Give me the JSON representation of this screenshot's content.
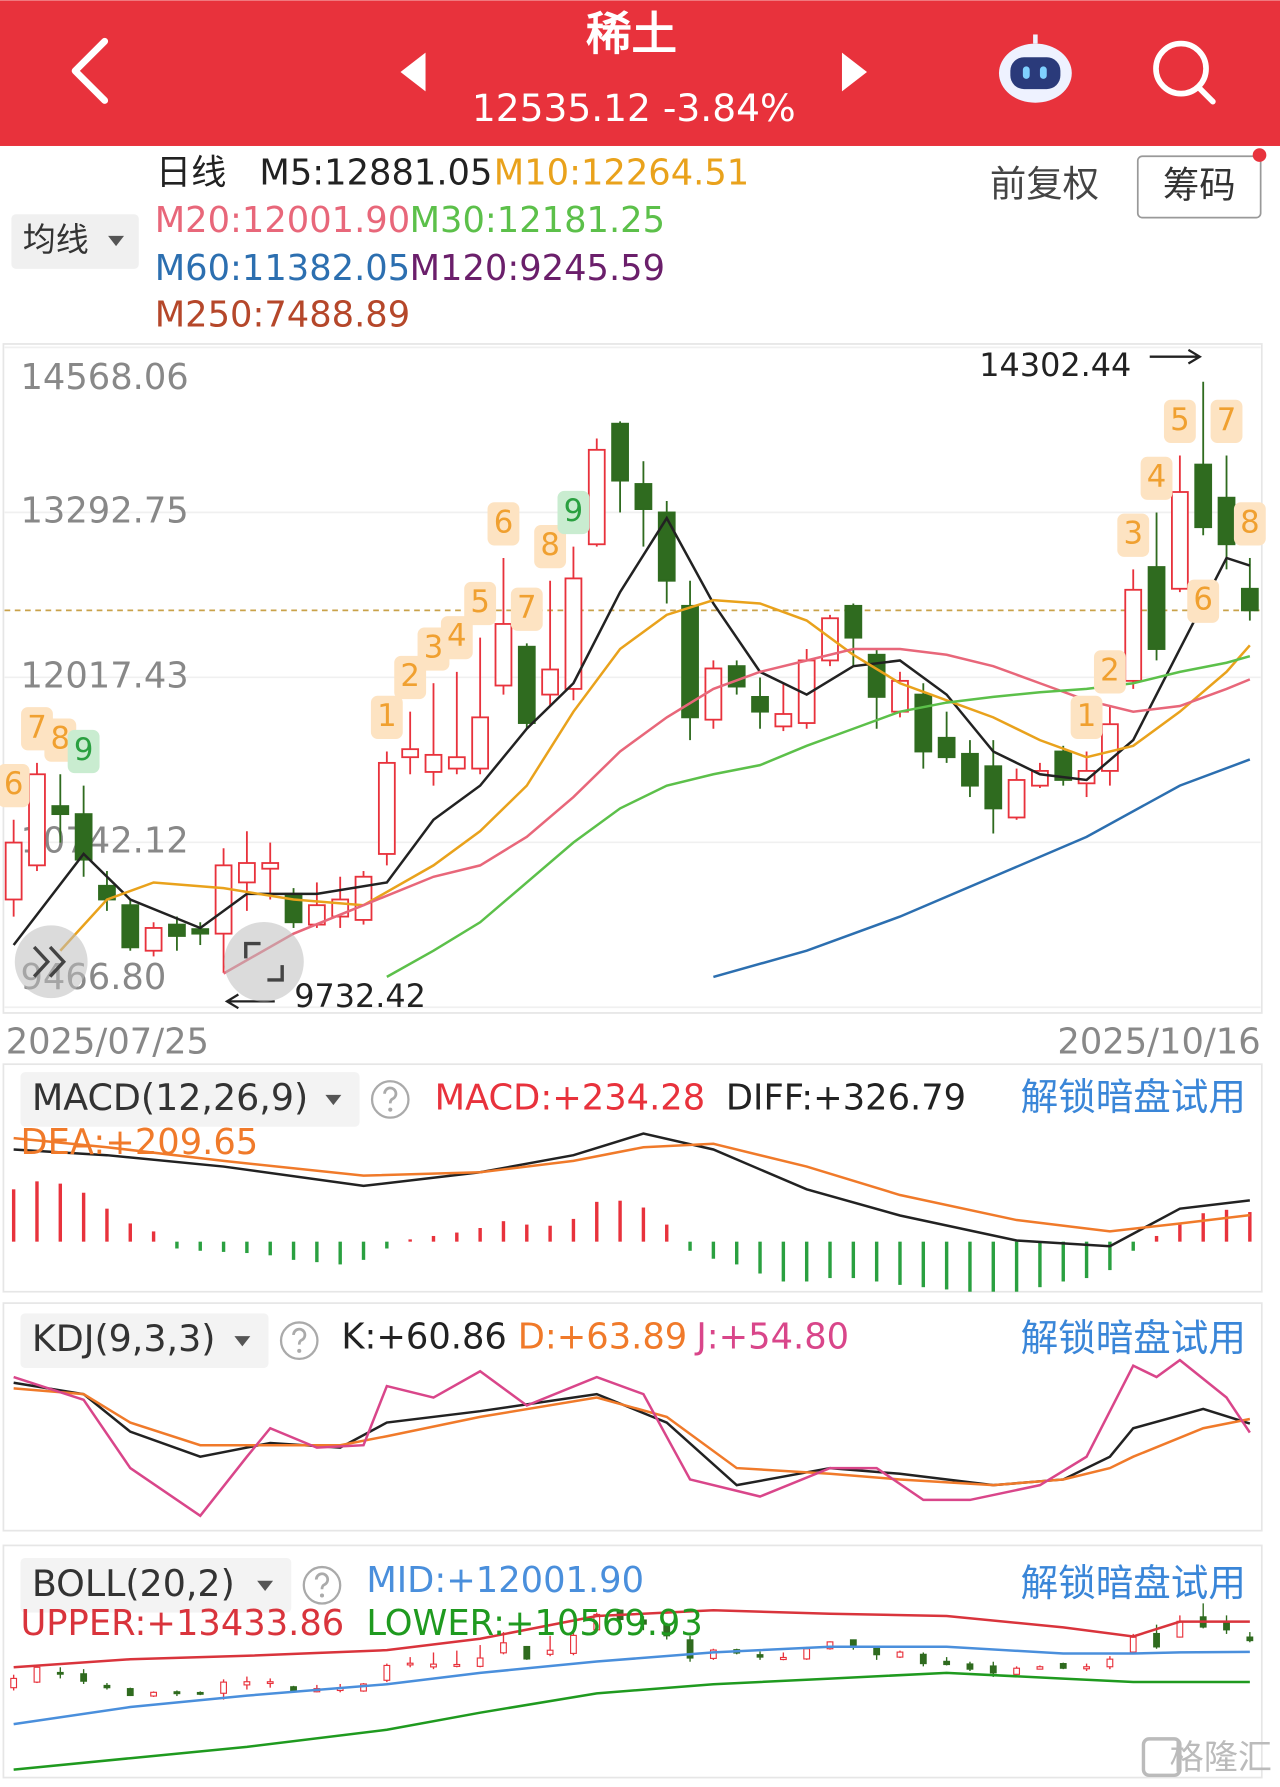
{
  "header": {
    "title": "稀土",
    "quote": "12535.12 -3.84%"
  },
  "toolbar": {
    "ma_button": "均线",
    "adjust": "前复权",
    "chips": "筹码"
  },
  "watermark": "格隆汇",
  "chart_data": [
    {
      "type": "candlestick",
      "period": "日线",
      "categories": [
        "2025/07/25",
        null,
        null,
        null,
        null,
        null,
        null,
        null,
        null,
        null,
        null,
        null,
        null,
        null,
        null,
        null,
        null,
        null,
        null,
        null,
        null,
        null,
        null,
        null,
        null,
        null,
        null,
        null,
        null,
        null,
        null,
        null,
        null,
        null,
        null,
        null,
        null,
        null,
        null,
        null,
        null,
        null,
        null,
        null,
        null,
        null,
        null,
        null,
        null,
        null,
        null,
        null,
        null,
        "2025/10/16"
      ],
      "open": [
        10300,
        10564,
        11022,
        10960,
        10406,
        10256,
        9904,
        10106,
        10071,
        10036,
        10432,
        10538,
        10344,
        10106,
        10168,
        10142,
        10652,
        11400,
        11286,
        11312,
        11312,
        11954,
        12254,
        11884,
        11928,
        13046,
        13978,
        13512,
        13292,
        12570,
        11690,
        12104,
        11866,
        11638,
        11664,
        12148,
        12570,
        12192,
        11752,
        11884,
        11550,
        11426,
        11330,
        10934,
        11180,
        11444,
        11198,
        11294,
        11990,
        12870,
        12702,
        13662,
        13406,
        12702
      ],
      "high": [
        10916,
        11356,
        11268,
        11180,
        10520,
        10300,
        10124,
        10168,
        10124,
        10696,
        10828,
        10740,
        10388,
        10432,
        10476,
        10520,
        11444,
        11752,
        11972,
        12060,
        12324,
        12940,
        12280,
        12764,
        13028,
        13864,
        13996,
        13688,
        13380,
        12764,
        12148,
        12148,
        12016,
        11972,
        12236,
        12500,
        12588,
        12236,
        12060,
        11972,
        11752,
        11532,
        11532,
        11312,
        11356,
        11488,
        11444,
        11796,
        12852,
        13292,
        13732,
        14302.44,
        13732,
        12940
      ],
      "low": [
        10168,
        10520,
        10740,
        10476,
        10212,
        9904,
        9860,
        9904,
        9948,
        9732.42,
        10212,
        10300,
        10080,
        10080,
        10080,
        10106,
        10564,
        11268,
        11180,
        11268,
        11268,
        11884,
        11620,
        11796,
        11840,
        13028,
        13292,
        13028,
        12588,
        11532,
        11620,
        11884,
        11620,
        11602,
        11620,
        12104,
        12104,
        11620,
        11708,
        11312,
        11356,
        11092,
        10810,
        10916,
        11162,
        11180,
        11092,
        11180,
        11928,
        12148,
        12676,
        13116,
        12852,
        12456
      ],
      "close": [
        10740,
        11268,
        10960,
        10608,
        10300,
        9930,
        10080,
        10018,
        10036,
        10564,
        10582,
        10582,
        10124,
        10256,
        10300,
        10476,
        11356,
        11462,
        11418,
        11400,
        11708,
        12430,
        11664,
        12078,
        12782,
        13776,
        13538,
        13318,
        12764,
        11708,
        12086,
        11946,
        11752,
        11734,
        12148,
        12474,
        12324,
        11866,
        11990,
        11444,
        11400,
        11180,
        11004,
        11224,
        11294,
        11224,
        11294,
        11655,
        12694,
        12236,
        13450,
        13178,
        13046,
        12535.12
      ],
      "up_color": "#e8323c",
      "down_color": "#2f6b1f",
      "price_line_color": "#c9a24a",
      "grid": true,
      "ylim": [
        9466.8,
        14568.06
      ],
      "yticks": [
        {
          "value": 9466.8,
          "label": "9466.80"
        },
        10742.12,
        12017.43,
        13292.75,
        14568.06
      ],
      "series": [
        {
          "name": "M5:12881.05",
          "color": "#222222",
          "x": [
            0,
            3,
            5,
            8,
            10,
            13,
            16,
            18,
            20,
            22,
            24,
            26,
            28,
            30,
            32,
            34,
            36,
            38,
            40,
            42,
            44,
            46,
            48,
            50,
            52,
            53
          ],
          "values": [
            9948,
            10652,
            10300,
            10080,
            10344,
            10344,
            10432,
            10916,
            11180,
            11620,
            11972,
            12676,
            13248,
            12588,
            12060,
            11884,
            12104,
            12148,
            11884,
            11444,
            11268,
            11224,
            11532,
            12236,
            12940,
            12881.05
          ]
        },
        {
          "name": "M10:12264.51",
          "color": "#e9a21c",
          "x": [
            2,
            4,
            6,
            9,
            12,
            15,
            18,
            20,
            22,
            24,
            26,
            28,
            30,
            32,
            34,
            36,
            38,
            40,
            42,
            44,
            46,
            48,
            50,
            52,
            53
          ],
          "values": [
            9904,
            10300,
            10432,
            10388,
            10300,
            10256,
            10564,
            10828,
            11180,
            11752,
            12236,
            12500,
            12614,
            12588,
            12456,
            12192,
            11972,
            11840,
            11708,
            11532,
            11400,
            11488,
            11752,
            12060,
            12264.51
          ]
        },
        {
          "name": "M20:12001.90",
          "color": "#e8677a",
          "x": [
            9,
            12,
            15,
            18,
            20,
            22,
            24,
            26,
            28,
            30,
            32,
            34,
            36,
            38,
            40,
            42,
            44,
            46,
            48,
            50,
            52,
            53
          ],
          "values": [
            9728,
            10036,
            10256,
            10476,
            10564,
            10784,
            11092,
            11444,
            11708,
            11928,
            12060,
            12148,
            12236,
            12236,
            12192,
            12104,
            11972,
            11840,
            11752,
            11796,
            11928,
            12001.9
          ]
        },
        {
          "name": "M30:12181.25",
          "color": "#5cc04a",
          "x": [
            16,
            18,
            20,
            22,
            24,
            26,
            28,
            30,
            32,
            34,
            36,
            38,
            40,
            42,
            44,
            46,
            48,
            50,
            52,
            53
          ],
          "values": [
            9702,
            9904,
            10124,
            10432,
            10740,
            11004,
            11180,
            11268,
            11338,
            11488,
            11620,
            11752,
            11822,
            11866,
            11902,
            11928,
            11972,
            12060,
            12130,
            12181.25
          ]
        },
        {
          "name": "M60:11382.05",
          "color": "#2c6fb0",
          "x": [
            30,
            34,
            38,
            42,
            46,
            50,
            53
          ],
          "values": [
            9702,
            9904,
            10168,
            10476,
            10784,
            11180,
            11382.05
          ]
        }
      ],
      "legend_extra": [
        {
          "name": "M120:9245.59",
          "color": "#6b1f6b"
        },
        {
          "name": "M250:7488.89",
          "color": "#b5472a"
        }
      ],
      "annotations": [
        {
          "label": "14302.44",
          "index": 51,
          "at": "high"
        },
        {
          "label": "9732.42",
          "index": 9,
          "at": "low"
        }
      ],
      "signals": [
        {
          "label": "6",
          "index": 0,
          "color": "#f0a030"
        },
        {
          "label": "7",
          "index": 1,
          "color": "#f0a030"
        },
        {
          "label": "8",
          "index": 2,
          "color": "#f0a030"
        },
        {
          "label": "9",
          "index": 3,
          "color": "#2aa040"
        },
        {
          "label": "1",
          "index": 16,
          "color": "#f0a030"
        },
        {
          "label": "2",
          "index": 17,
          "color": "#f0a030"
        },
        {
          "label": "3",
          "index": 18,
          "color": "#f0a030"
        },
        {
          "label": "4",
          "index": 19,
          "color": "#f0a030"
        },
        {
          "label": "5",
          "index": 20,
          "color": "#f0a030"
        },
        {
          "label": "6",
          "index": 21,
          "color": "#f0a030"
        },
        {
          "label": "7",
          "index": 22,
          "color": "#f0a030"
        },
        {
          "label": "8",
          "index": 23,
          "color": "#f0a030"
        },
        {
          "label": "9",
          "index": 24,
          "color": "#2aa040"
        },
        {
          "label": "1",
          "index": 46,
          "color": "#f0a030"
        },
        {
          "label": "2",
          "index": 47,
          "color": "#f0a030"
        },
        {
          "label": "3",
          "index": 48,
          "color": "#f0a030"
        },
        {
          "label": "4",
          "index": 49,
          "color": "#f0a030"
        },
        {
          "label": "5",
          "index": 50,
          "color": "#f0a030"
        },
        {
          "label": "6",
          "index": 51,
          "color": "#f0a030",
          "position": "below"
        },
        {
          "label": "7",
          "index": 52,
          "color": "#f0a030"
        },
        {
          "label": "8",
          "index": 53,
          "color": "#f0a030"
        }
      ]
    },
    {
      "type": "macd",
      "title": "MACD(12,26,9)",
      "unlock": "解锁暗盘试用",
      "ylim": [
        -450,
        900
      ],
      "histogram": {
        "name": "MACD:+234.28",
        "color": "#e8323c",
        "up_color": "#e8323c",
        "down_color": "#2aa040",
        "values": [
          414,
          477,
          459,
          387,
          261,
          144,
          81,
          -54,
          -72,
          -81,
          -90,
          -108,
          -144,
          -162,
          -180,
          -144,
          -54,
          18,
          45,
          72,
          108,
          162,
          135,
          126,
          180,
          315,
          324,
          270,
          135,
          -72,
          -135,
          -180,
          -252,
          -315,
          -315,
          -288,
          -288,
          -315,
          -342,
          -360,
          -378,
          -396,
          -396,
          -396,
          -360,
          -315,
          -288,
          -225,
          -72,
          45,
          135,
          225,
          252,
          234.28
        ]
      },
      "series": [
        {
          "name": "DIFF:+326.79",
          "color": "#222222",
          "x": [
            0,
            4,
            9,
            15,
            20,
            24,
            27,
            30,
            34,
            38,
            43,
            47,
            50,
            53
          ],
          "values": [
            729,
            684,
            594,
            441,
            549,
            684,
            855,
            729,
            414,
            207,
            9,
            -36,
            261,
            326.79
          ]
        },
        {
          "name": "DEA:+209.65",
          "color": "#f07a2a",
          "x": [
            0,
            4,
            9,
            15,
            20,
            24,
            27,
            30,
            34,
            38,
            43,
            47,
            50,
            53
          ],
          "values": [
            819,
            747,
            639,
            522,
            549,
            639,
            747,
            774,
            594,
            369,
            171,
            81,
            144,
            209.65
          ]
        }
      ]
    },
    {
      "type": "kdj",
      "title": "KDJ(9,3,3)",
      "unlock": "解锁暗盘试用",
      "ylim": [
        -12,
        130
      ],
      "series": [
        {
          "name": "K:+60.86",
          "color": "#222222",
          "x": [
            0,
            3,
            5,
            8,
            11,
            14,
            16,
            20,
            25,
            28,
            31,
            35,
            38,
            42,
            45,
            47,
            48,
            51,
            53
          ],
          "values": [
            88.5,
            80.8,
            55.4,
            38.5,
            47.7,
            44.6,
            61.5,
            69.2,
            80.8,
            61.5,
            19.2,
            30.8,
            26.9,
            19.2,
            23.1,
            38.5,
            57.7,
            70.8,
            60.86
          ]
        },
        {
          "name": "D:+63.89",
          "color": "#f07a2a",
          "x": [
            0,
            3,
            5,
            8,
            11,
            14,
            16,
            20,
            25,
            28,
            31,
            35,
            38,
            42,
            45,
            47,
            48,
            51,
            53
          ],
          "values": [
            84.6,
            80.8,
            61.5,
            46.2,
            46.2,
            46.2,
            52.3,
            65.4,
            78.5,
            65.4,
            30.8,
            26.9,
            23.1,
            19.2,
            23.1,
            30.8,
            38.5,
            57.7,
            63.89
          ]
        },
        {
          "name": "J:+54.80",
          "color": "#d9468a",
          "x": [
            0,
            3,
            5,
            8,
            10,
            11,
            13,
            15,
            16,
            18,
            20,
            22,
            25,
            27,
            29,
            32,
            35,
            37,
            39,
            41,
            44,
            46,
            48,
            49,
            50,
            52,
            53
          ],
          "values": [
            92.3,
            76.9,
            30.8,
            -1.5,
            38.5,
            57.7,
            44.6,
            46.2,
            86.2,
            78.5,
            96.2,
            73.1,
            92.3,
            80.8,
            23.1,
            11.5,
            30.8,
            30.8,
            9.2,
            9.2,
            19.2,
            38.5,
            100,
            92.3,
            103.8,
            78.5,
            54.8
          ]
        }
      ]
    },
    {
      "type": "boll",
      "title": "BOLL(20,2)",
      "unlock": "解锁暗盘试用",
      "ylim": [
        6143,
        16673
      ],
      "series": [
        {
          "name": "UPPER:+13433.86",
          "color": "#d9343c",
          "x": [
            0,
            5,
            10,
            16,
            20,
            25,
            30,
            35,
            40,
            45,
            48,
            50,
            53
          ],
          "values": [
            11273,
            11651,
            11813,
            12083,
            12623,
            13703,
            13973,
            13811,
            13703,
            13163,
            12731,
            13433,
            13433.86
          ]
        },
        {
          "name": "MID:+12001.90",
          "color": "#4a8fdc",
          "x": [
            0,
            5,
            10,
            16,
            20,
            25,
            30,
            35,
            40,
            45,
            48,
            50,
            53
          ],
          "values": [
            8573,
            9383,
            9923,
            10463,
            11003,
            11543,
            11975,
            12245,
            12245,
            11921,
            11921,
            11975,
            12001.9
          ]
        },
        {
          "name": "LOWER:+10569.93",
          "color": "#1f9a1f",
          "x": [
            0,
            5,
            10,
            16,
            20,
            25,
            30,
            35,
            40,
            45,
            48,
            50,
            53
          ],
          "values": [
            6413,
            6953,
            7493,
            8303,
            9113,
            10031,
            10463,
            10733,
            11003,
            10733,
            10571,
            10571,
            10569.93
          ]
        }
      ]
    }
  ]
}
